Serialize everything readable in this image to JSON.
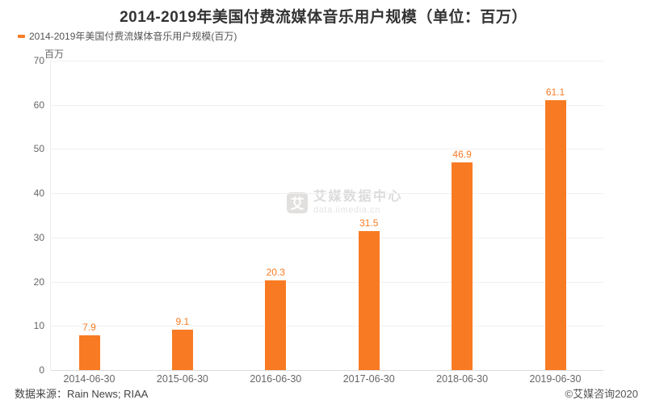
{
  "chart_data": {
    "type": "bar",
    "title": "2014-2019年美国付费流媒体音乐用户规模（单位：百万）",
    "legend": "2014-2019年美国付费流媒体音乐用户规模(百万)",
    "ylabel": "百万",
    "categories": [
      "2014-06-30",
      "2015-06-30",
      "2016-06-30",
      "2017-06-30",
      "2018-06-30",
      "2019-06-30"
    ],
    "values": [
      7.9,
      9.1,
      20.3,
      31.5,
      46.9,
      61.1
    ],
    "ylim": [
      0,
      70
    ],
    "ytick_step": 10,
    "grid": true,
    "legend_position": "top-left",
    "bar_color": "#F87B23",
    "value_label_color": "#F87B23"
  },
  "watermark": {
    "logo_glyph": "艾",
    "brand": "艾媒数据中心",
    "domain": "data.iimedia.cn"
  },
  "footer": {
    "source": "数据来源：Rain News; RIAA",
    "copyright": "©艾媒咨询2020"
  }
}
